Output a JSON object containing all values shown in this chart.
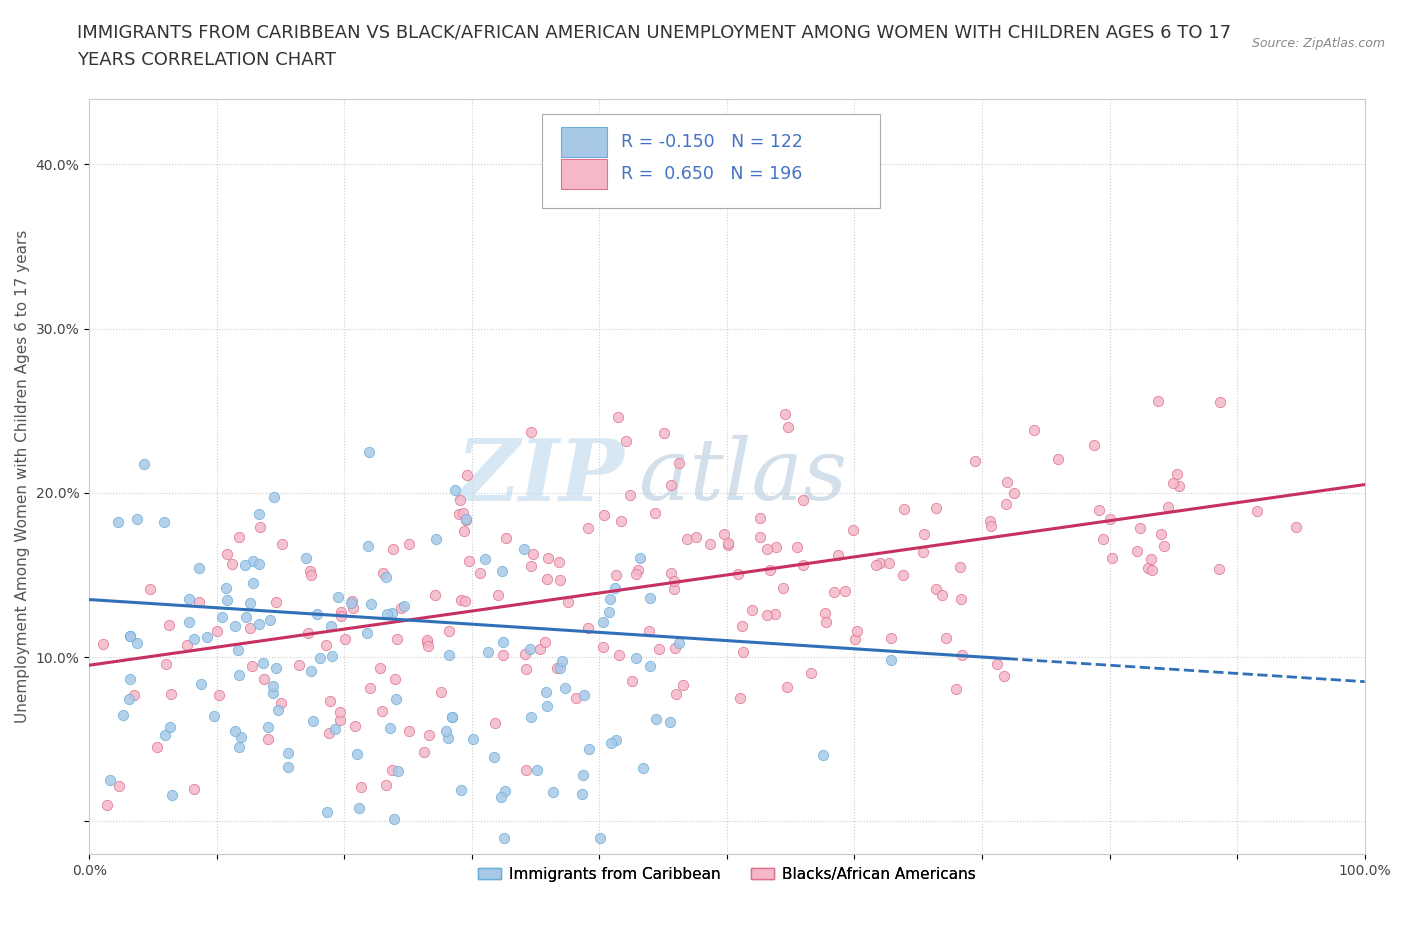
{
  "title_line1": "IMMIGRANTS FROM CARIBBEAN VS BLACK/AFRICAN AMERICAN UNEMPLOYMENT AMONG WOMEN WITH CHILDREN AGES 6 TO 17",
  "title_line2": "YEARS CORRELATION CHART",
  "source": "Source: ZipAtlas.com",
  "ylabel": "Unemployment Among Women with Children Ages 6 to 17 years",
  "xlim": [
    0,
    1.0
  ],
  "ylim": [
    -0.02,
    0.44
  ],
  "xticks": [
    0.0,
    0.1,
    0.2,
    0.3,
    0.4,
    0.5,
    0.6,
    0.7,
    0.8,
    0.9,
    1.0
  ],
  "yticks": [
    0.0,
    0.1,
    0.2,
    0.3,
    0.4
  ],
  "ytick_labels": [
    "",
    "10.0%",
    "20.0%",
    "30.0%",
    "40.0%"
  ],
  "series1_color": "#a8c8e8",
  "series1_edge": "#6baed6",
  "series2_color": "#f4b8c8",
  "series2_edge": "#de7090",
  "trendline1_color": "#3070b8",
  "trendline2_color": "#c83060",
  "legend_r1": "R = -0.150",
  "legend_n1": "N = 122",
  "legend_r2": "R =  0.650",
  "legend_n2": "N = 196",
  "legend_label1": "Immigrants from Caribbean",
  "legend_label2": "Blacks/African Americans",
  "watermark_zip": "ZIP",
  "watermark_atlas": "atlas",
  "watermark_color_zip": "#b8d0e8",
  "watermark_color_atlas": "#b8c8d8",
  "title_fontsize": 13,
  "axis_label_fontsize": 11,
  "tick_fontsize": 10,
  "blue_text_color": "#4472c4",
  "series1_R": -0.15,
  "series1_N": 122,
  "series2_R": 0.65,
  "series2_N": 196,
  "trendline1_start_y": 0.135,
  "trendline1_end_y": 0.085,
  "trendline2_start_y": 0.095,
  "trendline2_end_y": 0.205
}
